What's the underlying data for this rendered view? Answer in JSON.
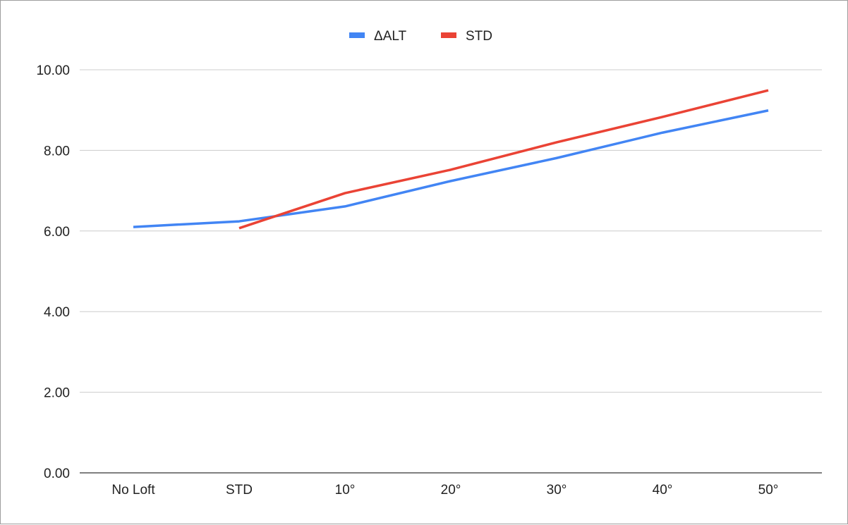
{
  "chart_data": {
    "type": "line",
    "title": "",
    "xlabel": "",
    "ylabel": "",
    "categories": [
      "No Loft",
      "STD",
      "10°",
      "20°",
      "30°",
      "40°",
      "50°"
    ],
    "ylim": [
      0,
      10
    ],
    "yticks": [
      "0.00",
      "2.00",
      "4.00",
      "6.00",
      "8.00",
      "10.00"
    ],
    "grid": true,
    "legend_position": "top-center",
    "series": [
      {
        "name": "ΔALT",
        "color": "#4285f4",
        "values": [
          6.1,
          6.24,
          6.61,
          7.24,
          7.81,
          8.44,
          8.99
        ]
      },
      {
        "name": "STD",
        "color": "#ea4335",
        "values": [
          null,
          6.07,
          6.94,
          7.52,
          8.2,
          8.83,
          9.49
        ]
      }
    ]
  }
}
